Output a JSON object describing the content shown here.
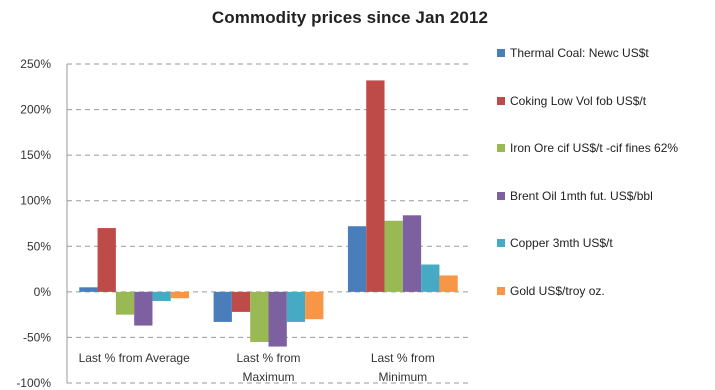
{
  "chart_data": {
    "type": "bar",
    "title": "Commodity prices since Jan 2012",
    "categories": [
      "Last % from Average",
      "Last % from Maximum",
      "Last % from Minimum"
    ],
    "y_ticks": [
      "250%",
      "200%",
      "150%",
      "100%",
      "50%",
      "0%",
      "-50%",
      "-100%"
    ],
    "ylim": [
      -100,
      250
    ],
    "grid": true,
    "legend_position": "right",
    "series": [
      {
        "name": "Thermal Coal: Newc US$t",
        "color": "#4a7ebb",
        "values": [
          5,
          -33,
          72
        ]
      },
      {
        "name": "Coking Low Vol fob US$/t",
        "color": "#be4b48",
        "values": [
          70,
          -22,
          232
        ]
      },
      {
        "name": "Iron Ore cif US$/t -cif fines 62%",
        "color": "#98b954",
        "values": [
          -25,
          -55,
          78
        ]
      },
      {
        "name": "Brent Oil 1mth fut. US$/bbl",
        "color": "#7d60a0",
        "values": [
          -37,
          -60,
          84
        ]
      },
      {
        "name": "Copper 3mth US$/t",
        "color": "#46aac5",
        "values": [
          -10,
          -33,
          30
        ]
      },
      {
        "name": "Gold US$/troy oz.",
        "color": "#f79646",
        "values": [
          -7,
          -30,
          18
        ]
      }
    ]
  }
}
